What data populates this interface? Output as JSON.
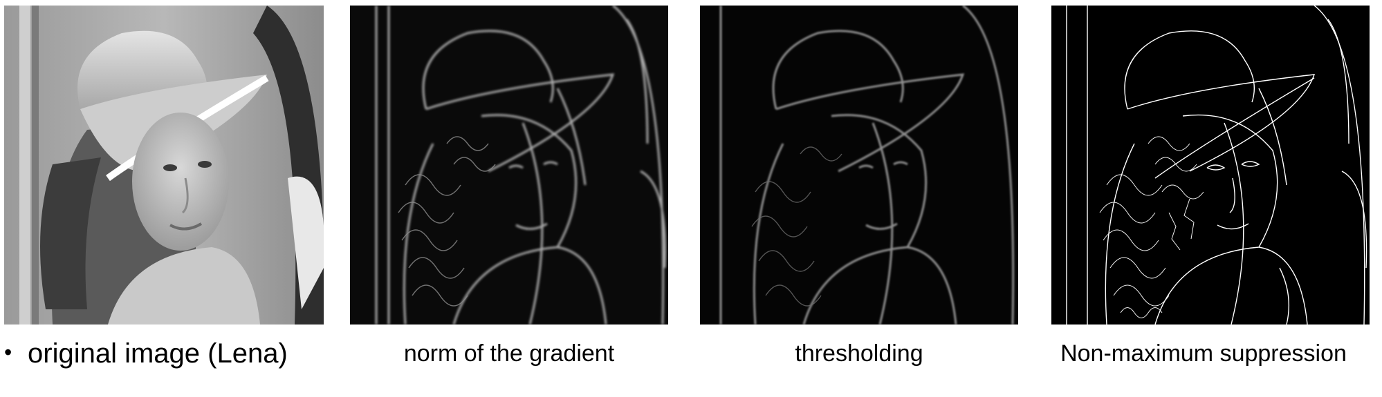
{
  "panels": [
    {
      "id": "original",
      "caption_bullet": "•",
      "caption": "original image (Lena)",
      "tone": "grayscale-photo"
    },
    {
      "id": "gradient",
      "caption": "norm of the gradient",
      "tone": "dark-edge-map"
    },
    {
      "id": "threshold",
      "caption": "thresholding",
      "tone": "dark-edge-map-thresholded"
    },
    {
      "id": "nms",
      "caption": "Non-maximum suppression",
      "tone": "thin-white-edges-on-black"
    }
  ],
  "colors": {
    "background": "#ffffff",
    "text": "#000000",
    "edge_panel_bg": "#000000",
    "edge_line": "#ffffff"
  }
}
